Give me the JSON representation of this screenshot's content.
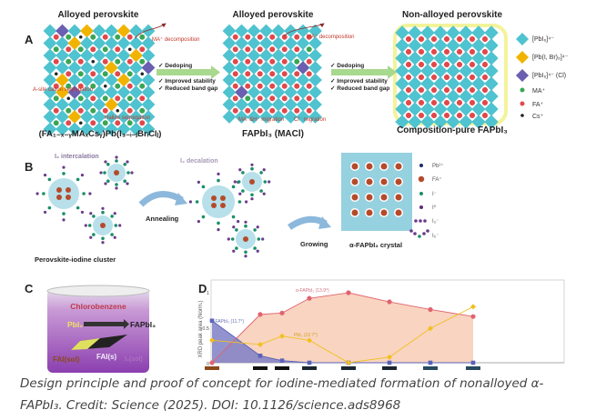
{
  "panel_a": {
    "label": "A",
    "title_left": "Alloyed perovskite",
    "title_mid": "Alloyed perovskite",
    "title_right": "Non-alloyed perovskite",
    "formula_left": "(FA₁₋ₓ₋ᵧMAₓCsᵧ)Pb(I₃₋ᵢ₋ⱼBrᵢClⱼ)",
    "formula_mid": "FAPbI₃ (MACl)",
    "formula_right": "Composition-pure FAPbI₃",
    "note_ma_decomp": "MA⁺ decomposition",
    "note_ma_decomp2": "MA⁺ decomposition",
    "note_asite": "A-site cation segregation",
    "note_halide": "Halide segregation",
    "note_ma_migration": "MA⁺&H⁺ migration",
    "note_cl_migration": "Cl⁻ migration",
    "benefits": [
      "✓  Dedoping",
      "✓  Improved stability",
      "✓  Reduced band gap"
    ],
    "legend": [
      "[PbI₆]⁴⁻",
      "[Pb(I, Br)₆]⁴⁻",
      "[PbI₆]⁴⁻ (Cl)",
      "MA⁺",
      "FA⁺",
      "Cs⁺"
    ],
    "colors": {
      "octahedron": "#4fc3cf",
      "mixed": "#f0b400",
      "cl": "#6a5fb0",
      "ma": "#3aa655",
      "fa": "#e0494c",
      "cs": "#222222",
      "highlight": "#f3f39a"
    }
  },
  "panel_b": {
    "label": "B",
    "intercalation": "I₂ intercalation",
    "decalation": "I₂ decalation",
    "cluster": "Perovskite-iodine cluster",
    "annealing": "Annealing",
    "growing": "Growing",
    "crystal": "α-FAPbI₃ crystal",
    "legend": [
      "Pb²⁺",
      "FA⁺",
      "I⁻",
      "I⁰",
      "I₃⁻",
      "I₅⁻"
    ]
  },
  "panel_c": {
    "label": "C",
    "solvent": "Chlorobenzene",
    "reactant": "PbI₂",
    "product": "FAPbI₃",
    "fai_sol": "FAI(sol)",
    "fai_s": "FAI(s)",
    "i2_sol": "I₂(sol)"
  },
  "chart_data": {
    "type": "line",
    "label": "D",
    "ylabel": "XRD peak area (Norm.)",
    "ylim": [
      0,
      1.1
    ],
    "yticks": [
      "0",
      "0.5",
      "1"
    ],
    "grid": false,
    "series": [
      {
        "name": "α-FAPbI₃ (13.9°)",
        "color": "#e06470",
        "fill": "#f8c9b0",
        "values": [
          0,
          0.69,
          0.71,
          0.92,
          1.0,
          0.87,
          0.76,
          0.66
        ]
      },
      {
        "name": "δ-FAPbI₃ (11.7°)",
        "color": "#5a62b8",
        "fill": "#7f7fc6",
        "values": [
          0.6,
          0.1,
          0.03,
          0,
          0,
          0,
          0,
          0
        ]
      },
      {
        "name": "PbI₂ (12.7°)",
        "color": "#f0c020",
        "fill": "none",
        "values": [
          0.32,
          0.26,
          0.38,
          0.32,
          0,
          0.08,
          0.49,
          0.8
        ]
      }
    ],
    "sample_colors": [
      "#8a4a1a",
      "#111111",
      "#111111",
      "#1a2630",
      "#1a2630",
      "#1a2630",
      "#2a4a60",
      "#2a4a60"
    ]
  },
  "caption": {
    "line1": "Design principle and proof of concept for iodine-mediated formation of nonalloyed α-",
    "line2": "FAPbI₃. Credit: Science (2025). DOI: 10.1126/science.ads8968"
  }
}
